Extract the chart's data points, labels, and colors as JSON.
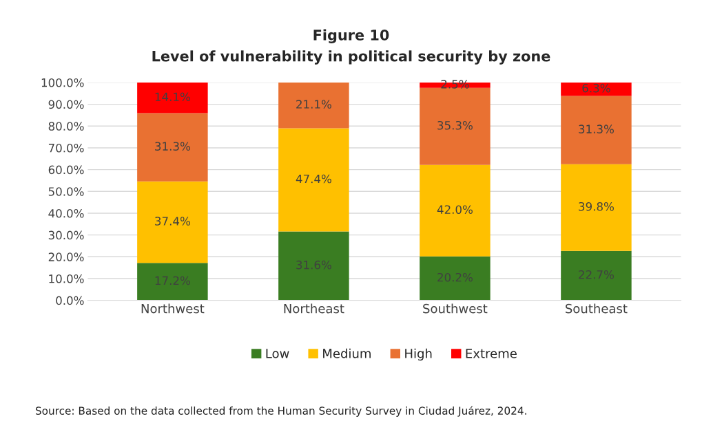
{
  "chart_data": {
    "type": "bar",
    "stacked": true,
    "title": "Figure 10",
    "subtitle": "Level of vulnerability in political security by zone",
    "categories": [
      "Northwest",
      "Northeast",
      "Southwest",
      "Southeast"
    ],
    "series": [
      {
        "name": "Low",
        "color": "#3a7d22",
        "values": [
          17.2,
          31.6,
          20.2,
          22.7
        ],
        "value_labels": [
          "17.2%",
          "31.6%",
          "20.2%",
          "22.7%"
        ]
      },
      {
        "name": "Medium",
        "color": "#ffc000",
        "values": [
          37.4,
          47.4,
          42.0,
          39.8
        ],
        "value_labels": [
          "37.4%",
          "47.4%",
          "42.0%",
          "39.8%"
        ]
      },
      {
        "name": "High",
        "color": "#e97132",
        "values": [
          31.3,
          21.1,
          35.3,
          31.3
        ],
        "value_labels": [
          "31.3%",
          "21.1%",
          "35.3%",
          "31.3%"
        ]
      },
      {
        "name": "Extreme",
        "color": "#ff0000",
        "values": [
          14.1,
          null,
          2.5,
          6.3
        ],
        "value_labels": [
          "14.1%",
          null,
          "2.5%",
          "6.3%"
        ]
      }
    ],
    "ylim": [
      0,
      100
    ],
    "yticks": [
      {
        "value": 0,
        "label": "0.0%"
      },
      {
        "value": 10,
        "label": "10.0%"
      },
      {
        "value": 20,
        "label": "20.0%"
      },
      {
        "value": 30,
        "label": "30.0%"
      },
      {
        "value": 40,
        "label": "40.0%"
      },
      {
        "value": 50,
        "label": "50.0%"
      },
      {
        "value": 60,
        "label": "60.0%"
      },
      {
        "value": 70,
        "label": "70.0%"
      },
      {
        "value": 80,
        "label": "80.0%"
      },
      {
        "value": 90,
        "label": "90.0%"
      },
      {
        "value": 100,
        "label": "100.0%"
      }
    ],
    "grid": "y",
    "legend": "bottom",
    "annotations": [
      "Source: Based on the data collected from the Human Security Survey in Ciudad Juárez, 2024."
    ]
  }
}
